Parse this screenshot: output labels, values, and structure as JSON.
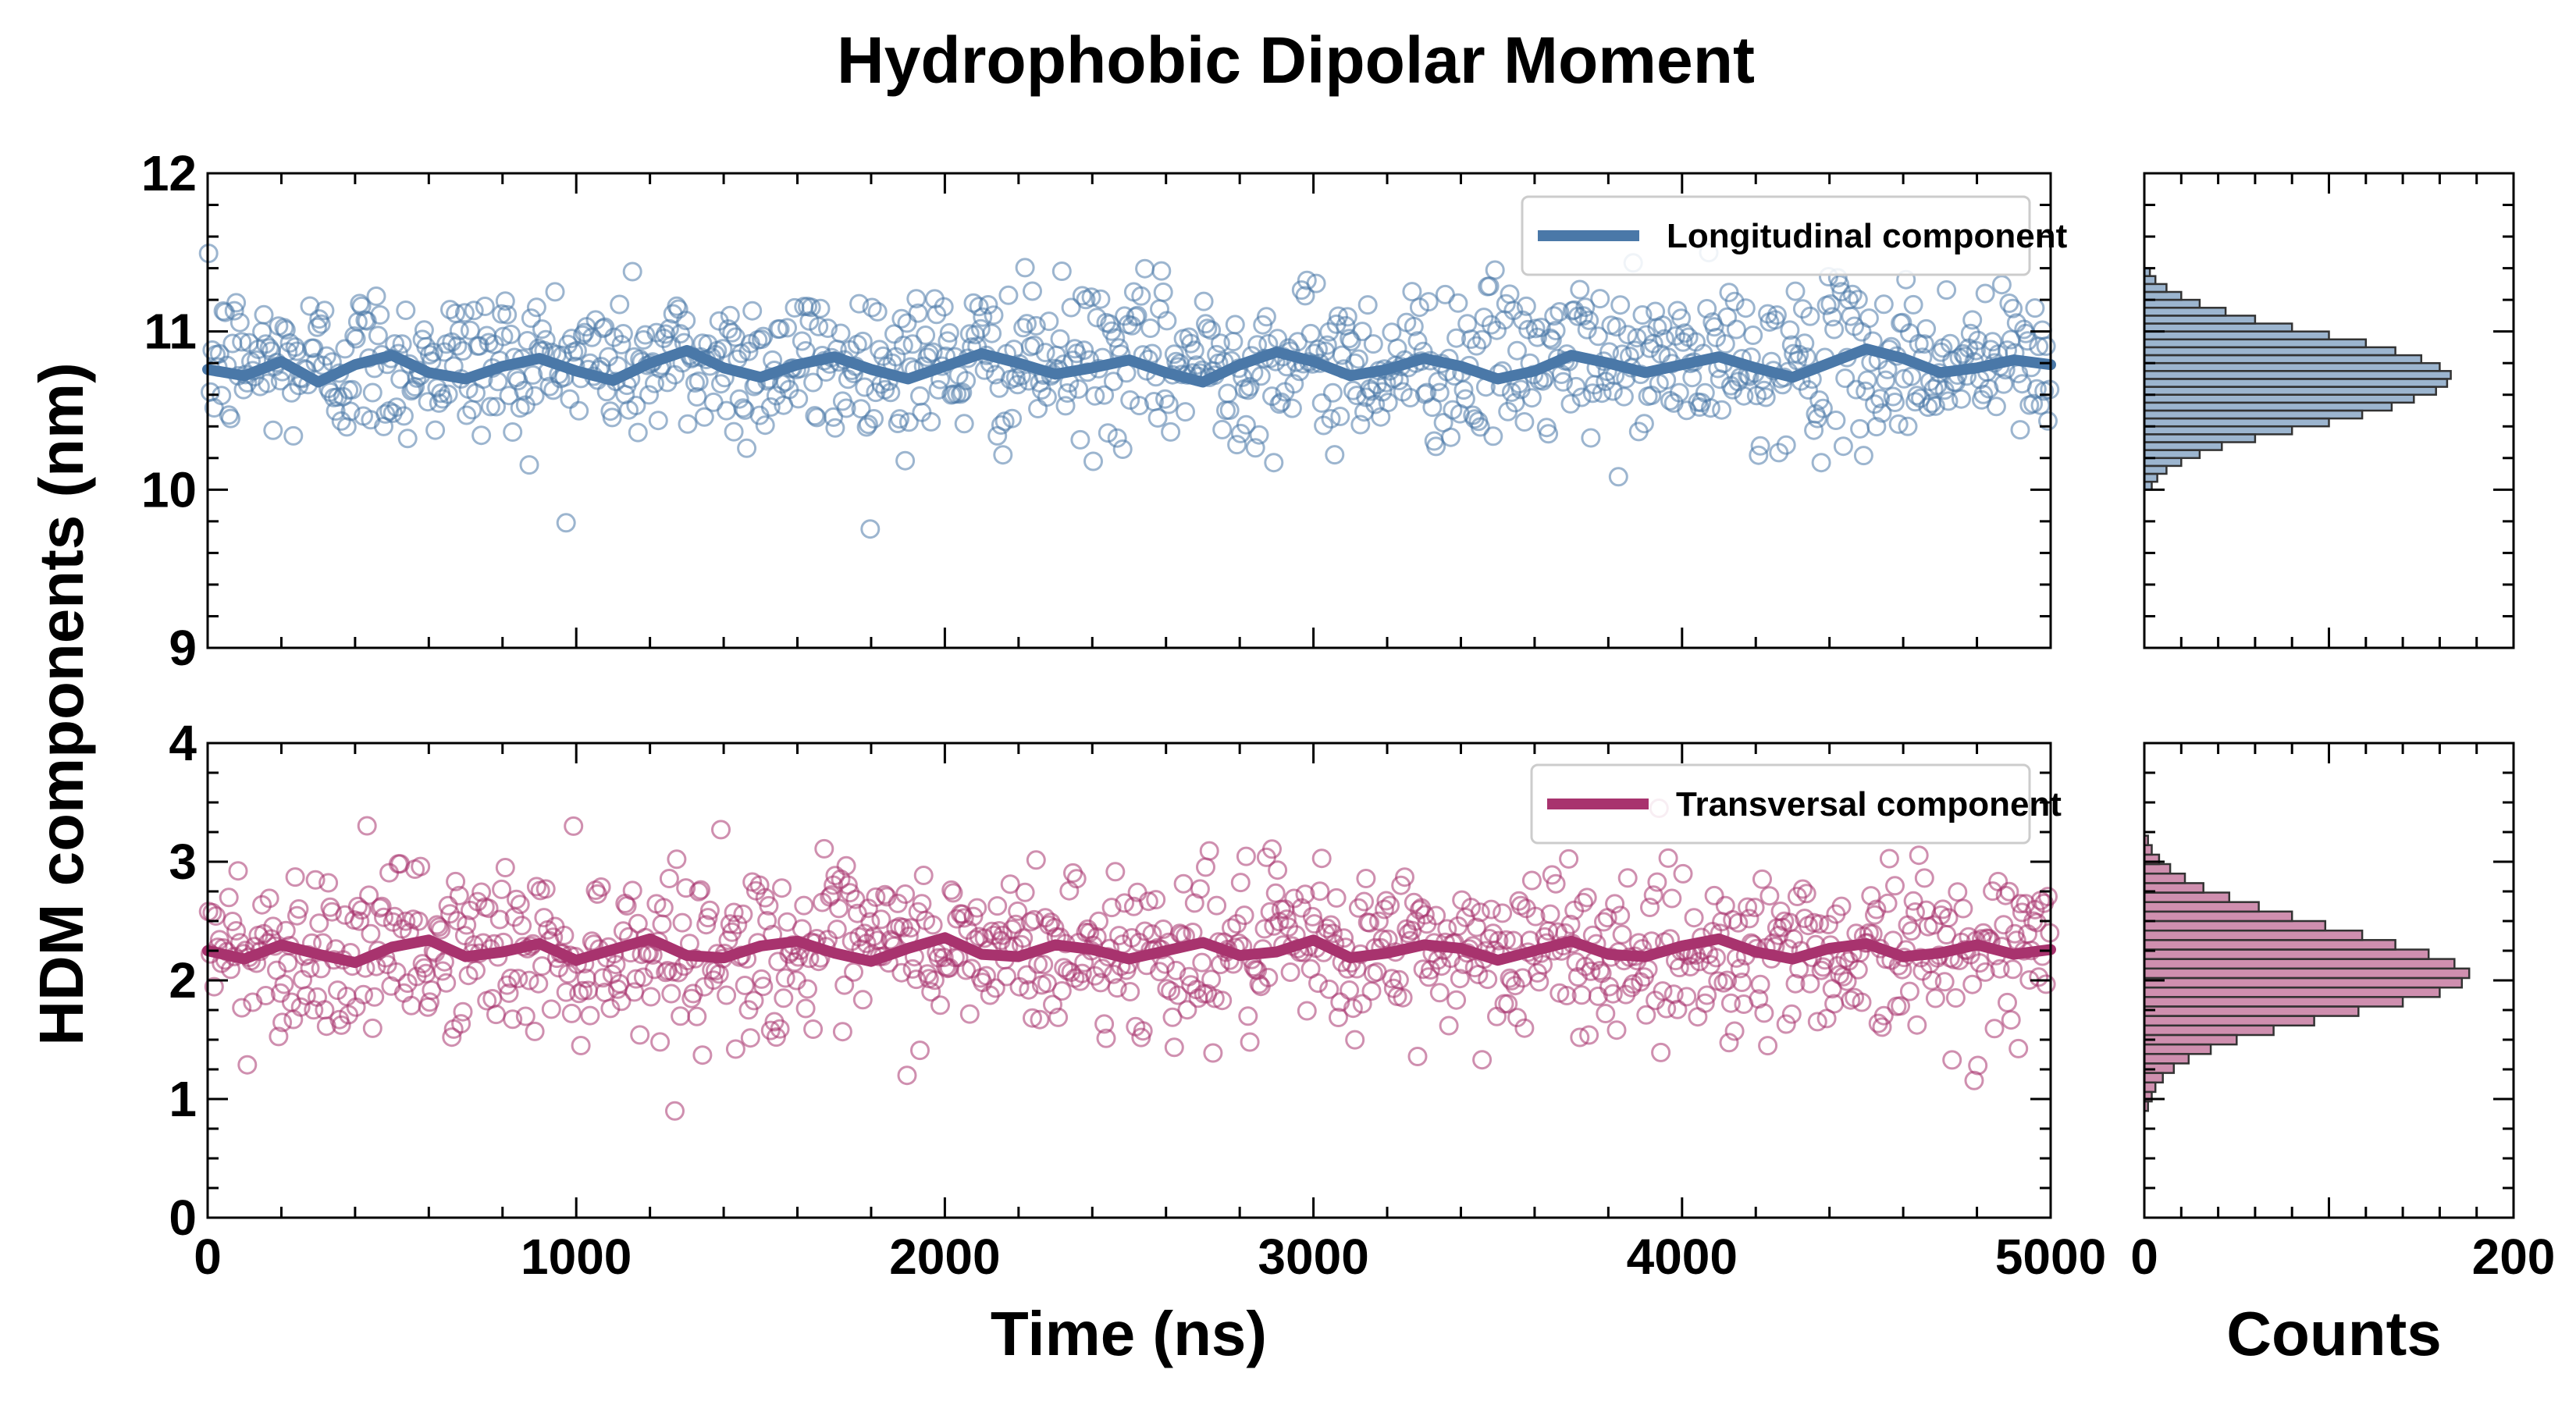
{
  "chart_data": {
    "type": "scatter",
    "title": "Hydrophobic Dipolar Moment",
    "ylabel": "HDM components (nm)",
    "xlabel": "Time (ns)",
    "hist_xlabel": "Counts",
    "xlim": [
      0,
      5000
    ],
    "x_ticks": [
      "0",
      "1000",
      "2000",
      "3000",
      "4000",
      "5000"
    ],
    "hist_xlim": [
      0,
      200
    ],
    "hist_x_ticks": [
      "0",
      "200"
    ],
    "grid": false,
    "legend_position": "top-right",
    "panels": [
      {
        "series_name": "Longitudinal component",
        "color": "#4a78a8",
        "ylim": [
          9,
          12
        ],
        "y_ticks": [
          "9",
          "10",
          "11",
          "12"
        ],
        "scatter_mean": 10.8,
        "scatter_sd": 0.25,
        "running_mean": [
          10.76,
          10.72,
          10.81,
          10.68,
          10.79,
          10.85,
          10.74,
          10.7,
          10.78,
          10.83,
          10.75,
          10.69,
          10.8,
          10.88,
          10.77,
          10.71,
          10.79,
          10.84,
          10.76,
          10.7,
          10.78,
          10.86,
          10.8,
          10.73,
          10.77,
          10.82,
          10.74,
          10.68,
          10.79,
          10.87,
          10.81,
          10.72,
          10.76,
          10.83,
          10.78,
          10.7,
          10.75,
          10.85,
          10.8,
          10.74,
          10.79,
          10.84,
          10.77,
          10.71,
          10.8,
          10.89,
          10.83,
          10.74,
          10.77,
          10.82,
          10.79
        ],
        "histogram": {
          "bin_start": 10.0,
          "bin_width": 0.05,
          "counts": [
            4,
            7,
            12,
            20,
            30,
            42,
            60,
            80,
            100,
            118,
            134,
            146,
            158,
            164,
            166,
            160,
            150,
            136,
            120,
            100,
            80,
            60,
            44,
            30,
            20,
            12,
            6,
            3
          ]
        }
      },
      {
        "series_name": "Transversal component",
        "color": "#a8336e",
        "ylim": [
          0,
          4
        ],
        "y_ticks": [
          "0",
          "1",
          "2",
          "3",
          "4"
        ],
        "scatter_mean": 2.25,
        "scatter_sd": 0.35,
        "running_mean": [
          2.25,
          2.18,
          2.3,
          2.22,
          2.15,
          2.28,
          2.34,
          2.2,
          2.24,
          2.31,
          2.17,
          2.26,
          2.35,
          2.21,
          2.19,
          2.29,
          2.33,
          2.23,
          2.16,
          2.27,
          2.36,
          2.22,
          2.2,
          2.3,
          2.26,
          2.18,
          2.25,
          2.32,
          2.21,
          2.24,
          2.34,
          2.19,
          2.23,
          2.3,
          2.27,
          2.17,
          2.25,
          2.33,
          2.22,
          2.2,
          2.29,
          2.35,
          2.24,
          2.18,
          2.27,
          2.31,
          2.2,
          2.23,
          2.3,
          2.22,
          2.26
        ],
        "histogram": {
          "bin_start": 0.9,
          "bin_width": 0.08,
          "counts": [
            2,
            4,
            6,
            10,
            16,
            24,
            36,
            50,
            70,
            92,
            116,
            140,
            160,
            172,
            176,
            168,
            154,
            136,
            118,
            98,
            80,
            62,
            46,
            32,
            22,
            14,
            8,
            4,
            2
          ]
        }
      }
    ]
  }
}
